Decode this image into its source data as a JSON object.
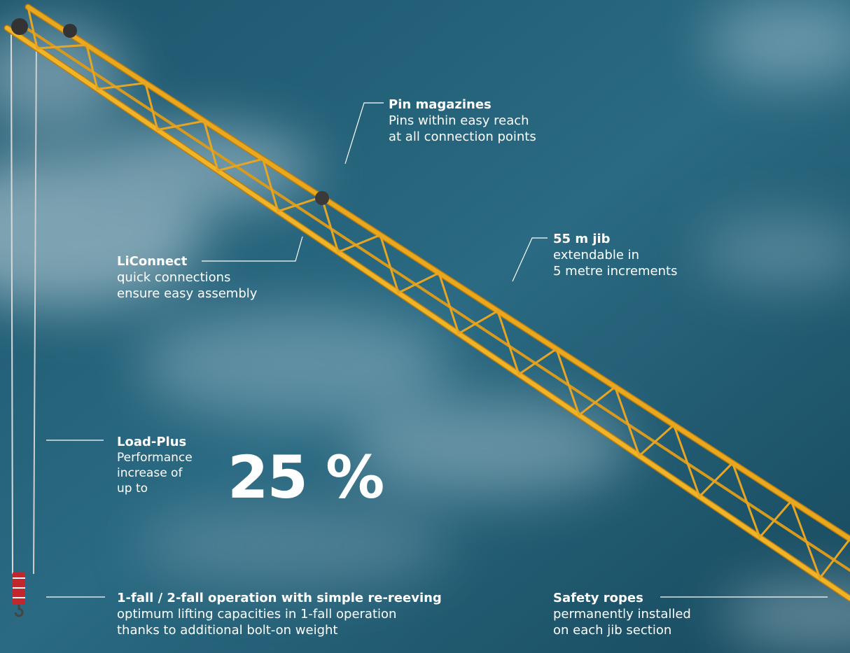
{
  "callouts": {
    "pin_magazines": {
      "title": "Pin magazines",
      "lines": [
        "Pins within easy reach",
        "at all connection points"
      ]
    },
    "jib": {
      "title": "55 m jib",
      "lines": [
        "extendable in",
        "5 metre increments"
      ]
    },
    "liconnect": {
      "title": "LiConnect",
      "lines": [
        "quick connections",
        "ensure easy assembly"
      ]
    },
    "load_plus": {
      "title": "Load-Plus",
      "lines": [
        "Performance",
        "increase of",
        "up to"
      ],
      "big_value": "25 %"
    },
    "fall_operation": {
      "title": "1-fall / 2-fall operation with simple re-reeving",
      "lines": [
        "optimum lifting capacities in 1-fall operation",
        "thanks to additional bolt-on weight"
      ]
    },
    "safety_ropes": {
      "title": "Safety ropes",
      "lines": [
        "permanently installed",
        "on each jib section"
      ]
    }
  },
  "colors": {
    "sky_dark": "#16495e",
    "sky_mid": "#2a6a82",
    "cloud": "#c9dbe3",
    "crane_yellow": "#e9a81e",
    "crane_shadow": "#b97c10",
    "hook_red": "#c1272d"
  }
}
